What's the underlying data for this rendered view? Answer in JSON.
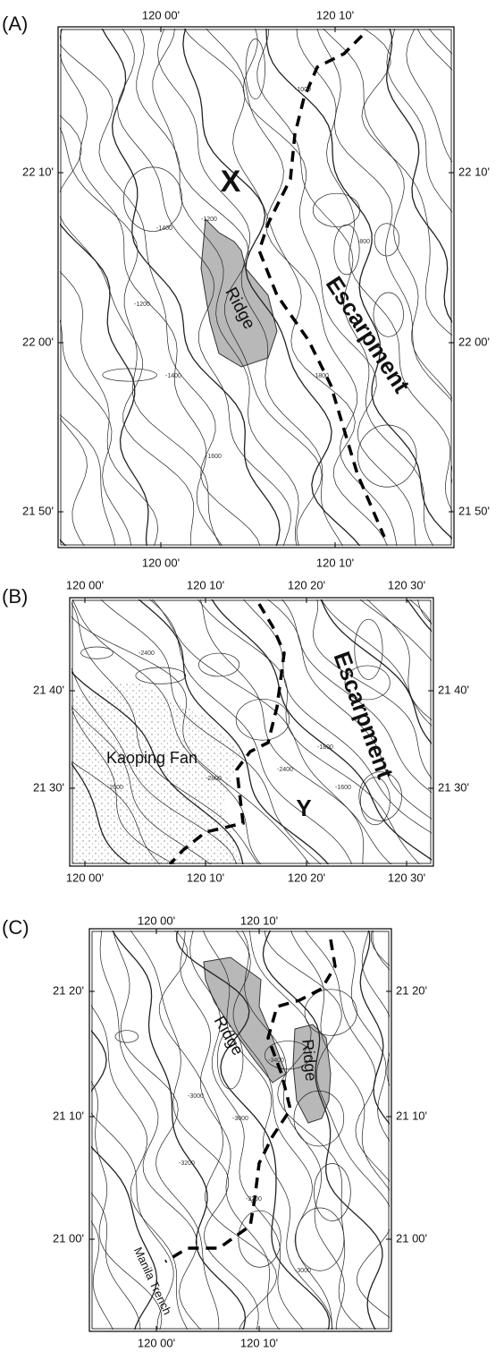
{
  "panels": [
    {
      "label": "(A)",
      "top_ticks": [
        "120 00'",
        "120 10'"
      ],
      "bottom_ticks": [
        "120 00'",
        "120 10'"
      ],
      "left_ticks": [
        "22 10'",
        "22 00'",
        "21 50'"
      ],
      "right_ticks": [
        "22 10'",
        "22 00'",
        "21 50'"
      ],
      "features": [
        "X",
        "Ridge",
        "Escarpment"
      ],
      "contour_labels": [
        "-1200",
        "-1000",
        "-1400",
        "-800",
        "-1600",
        "-1800",
        "-1200",
        "-1400"
      ]
    },
    {
      "label": "(B)",
      "top_ticks": [
        "120 00'",
        "120 10'",
        "120 20'",
        "120 30'"
      ],
      "bottom_ticks": [
        "120 00'",
        "120 10'",
        "120 20'",
        "120 30'"
      ],
      "left_ticks": [
        "21 40'",
        "21 30'"
      ],
      "right_ticks": [
        "21 40'",
        "21 30'"
      ],
      "features": [
        "Kaoping Fan",
        "Escarpment",
        "Y"
      ],
      "contour_labels": [
        "-2400",
        "-2600",
        "-2800",
        "-1800",
        "-1600",
        "-2400"
      ]
    },
    {
      "label": "(C)",
      "top_ticks": [
        "120 00'",
        "120 10'"
      ],
      "bottom_ticks": [
        "120 00'",
        "120 10'"
      ],
      "left_ticks": [
        "21 20'",
        "21 10'",
        "21 00'"
      ],
      "right_ticks": [
        "21 20'",
        "21 10'",
        "21 00'"
      ],
      "features": [
        "Ridge",
        "Ridge",
        "Manila Trench"
      ],
      "contour_labels": [
        "-3000",
        "-3000",
        "-3200",
        "-3400",
        "-3000",
        "-3200"
      ]
    }
  ]
}
